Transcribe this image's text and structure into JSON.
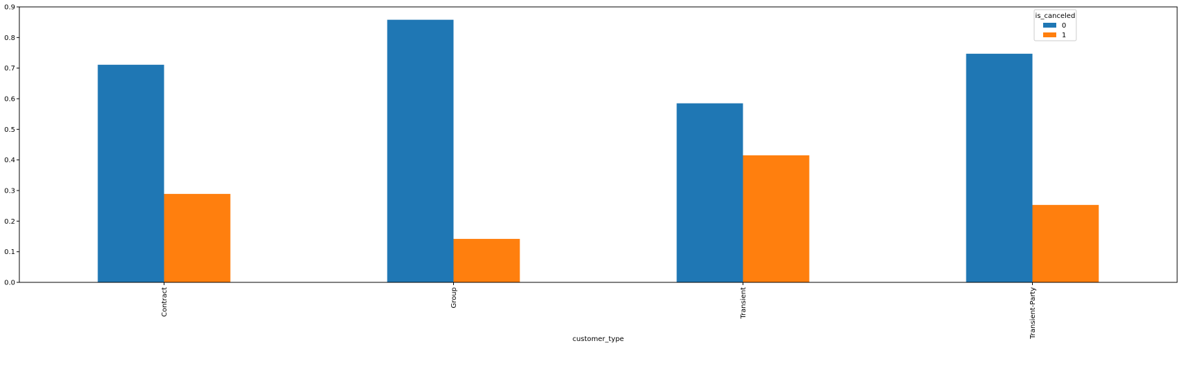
{
  "chart_data": {
    "type": "bar",
    "categories": [
      "Contract",
      "Group",
      "Transient",
      "Transient-Party"
    ],
    "series": [
      {
        "name": "0",
        "values": [
          0.711,
          0.858,
          0.585,
          0.747
        ],
        "color": "#1f77b4"
      },
      {
        "name": "1",
        "values": [
          0.289,
          0.142,
          0.415,
          0.253
        ],
        "color": "#ff7f0e"
      }
    ],
    "xlabel": "customer_type",
    "ylabel": "",
    "ylim": [
      0,
      0.9
    ],
    "yticks": [
      "0.0",
      "0.1",
      "0.2",
      "0.3",
      "0.4",
      "0.5",
      "0.6",
      "0.7",
      "0.8",
      "0.9"
    ],
    "legend": {
      "title": "is_canceled",
      "placement": "top-right"
    },
    "grid": false
  }
}
